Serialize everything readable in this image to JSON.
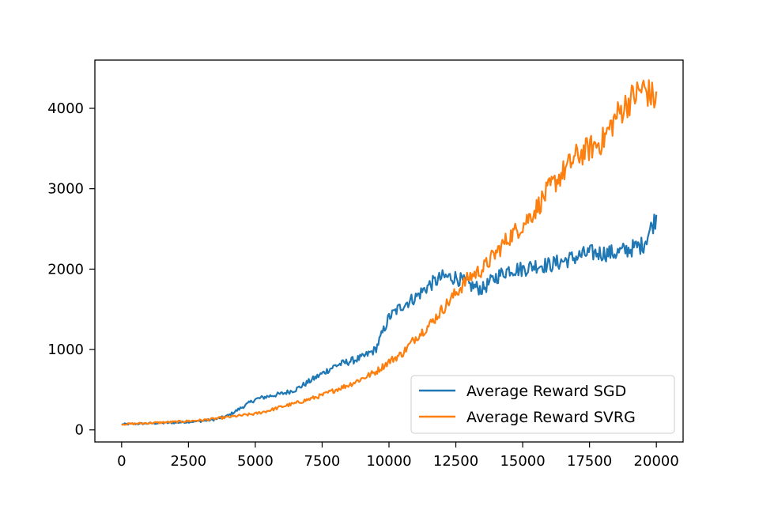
{
  "chart_data": {
    "type": "line",
    "title": "",
    "xlabel": "",
    "ylabel": "",
    "xlim": [
      -1000,
      21000
    ],
    "ylim": [
      -150,
      4600
    ],
    "xticks": [
      0,
      2500,
      5000,
      7500,
      10000,
      12500,
      15000,
      17500,
      20000
    ],
    "xtick_labels": [
      "0",
      "2500",
      "5000",
      "7500",
      "10000",
      "12500",
      "15000",
      "17500",
      "20000"
    ],
    "yticks": [
      0,
      1000,
      2000,
      3000,
      4000
    ],
    "ytick_labels": [
      "0",
      "1000",
      "2000",
      "3000",
      "4000"
    ],
    "grid": false,
    "legend_position": "lower-right",
    "x": [
      0,
      1000,
      2000,
      3000,
      3500,
      4000,
      4500,
      5000,
      5500,
      6000,
      6500,
      7000,
      7500,
      8000,
      8500,
      9000,
      9500,
      10000,
      10500,
      11000,
      11500,
      12000,
      12500,
      13000,
      13500,
      14000,
      14500,
      15000,
      15500,
      16000,
      16500,
      17000,
      17500,
      18000,
      18500,
      19000,
      19500,
      20000
    ],
    "series": [
      {
        "name": "Average Reward SGD",
        "color": "#1f77b4",
        "values": [
          70,
          80,
          90,
          110,
          130,
          180,
          280,
          380,
          420,
          450,
          500,
          600,
          700,
          800,
          850,
          900,
          1000,
          1400,
          1550,
          1650,
          1800,
          1900,
          1900,
          1800,
          1750,
          1900,
          2000,
          2000,
          2050,
          2050,
          2100,
          2150,
          2200,
          2200,
          2200,
          2250,
          2300,
          2650
        ]
      },
      {
        "name": "Average Reward SVRG",
        "color": "#ff7f0e",
        "values": [
          70,
          85,
          100,
          120,
          140,
          160,
          180,
          200,
          240,
          290,
          330,
          380,
          430,
          500,
          560,
          640,
          720,
          850,
          950,
          1150,
          1300,
          1500,
          1700,
          1900,
          2000,
          2200,
          2400,
          2550,
          2750,
          3000,
          3200,
          3400,
          3500,
          3600,
          3900,
          4100,
          4250,
          4100
        ]
      }
    ]
  }
}
